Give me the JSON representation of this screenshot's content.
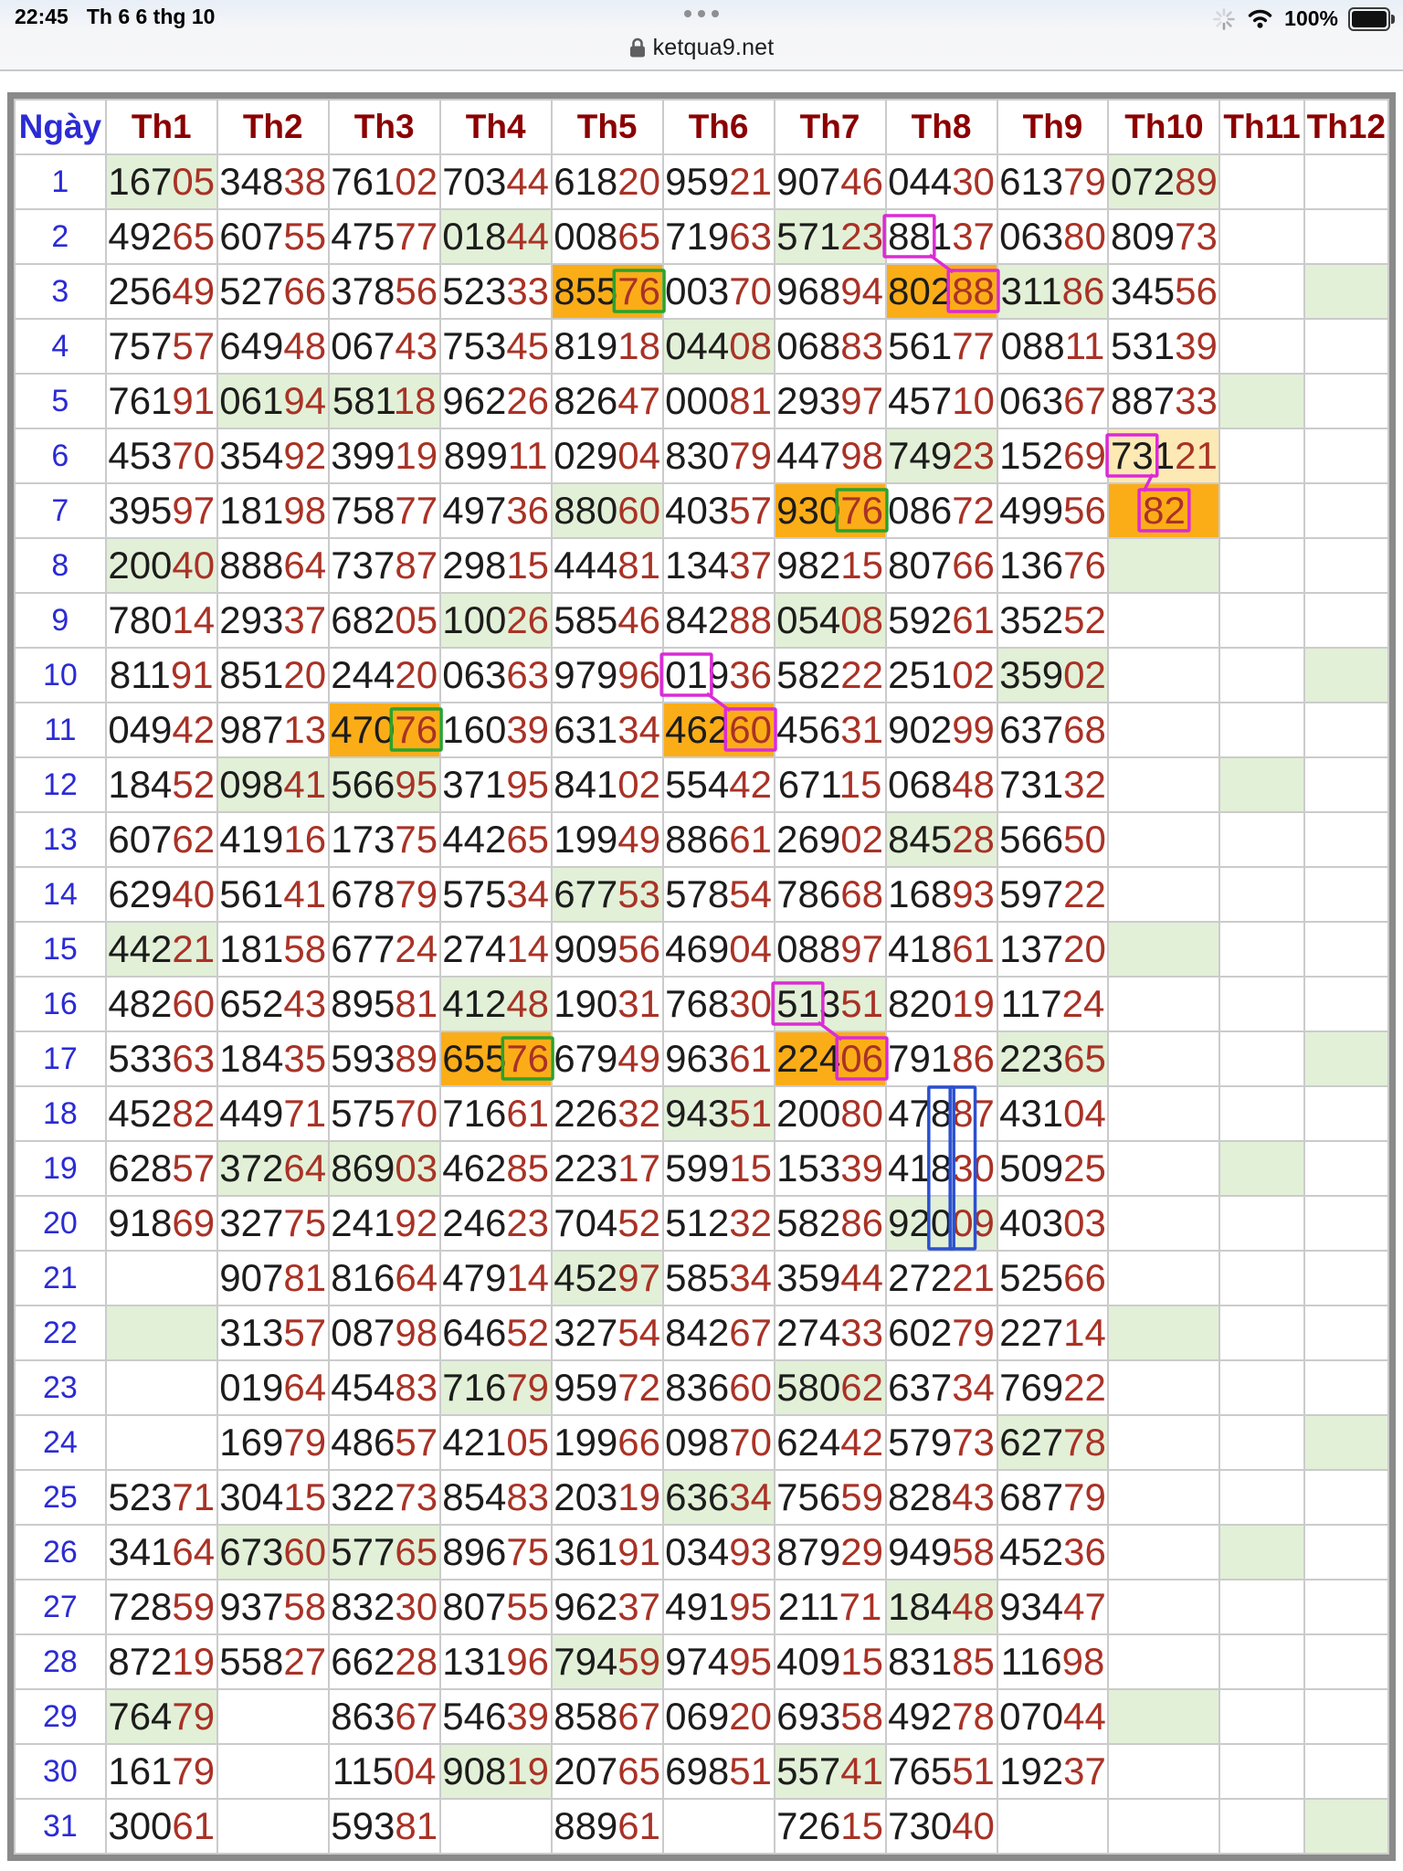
{
  "status": {
    "time": "22:45",
    "date": "Th 6 6 thg 10",
    "battery_percent": "100%",
    "right_icons": [
      "activity-spinner-icon",
      "wifi-icon",
      "battery-icon"
    ]
  },
  "browser": {
    "url": "ketqua9.net",
    "page_options_icon": "page-options-dots-icon",
    "lock_icon": "lock-icon"
  },
  "colors": {
    "green_bg": "#E2F0D7",
    "orange_bg": "#FBAD18",
    "pale_yellow_bg": "#FCE9B4",
    "magenta": "#DB2BD6",
    "green_box": "#2BA22B",
    "blue_box": "#2B50D0",
    "digit_dark": "#1C1C1C",
    "digit_red": "#A93226",
    "header_red": "#8B0000",
    "day_blue": "#2B2BD5"
  },
  "table": {
    "columns": [
      "Ngày",
      "Th1",
      "Th2",
      "Th3",
      "Th4",
      "Th5",
      "Th6",
      "Th7",
      "Th8",
      "Th9",
      "Th10",
      "Th11",
      "Th12"
    ],
    "rows": [
      {
        "d": 1,
        "c": [
          [
            "16705",
            "g"
          ],
          "34838",
          "76102",
          "70344",
          "61820",
          "95921",
          "90746",
          "04430",
          "61379",
          [
            "07289",
            "g"
          ],
          null,
          null
        ]
      },
      {
        "d": 2,
        "c": [
          "49265",
          "60755",
          "47577",
          [
            "01844",
            "g"
          ],
          "00865",
          "71963",
          [
            "57123",
            "g"
          ],
          [
            "88137",
            null,
            [
              0,
              2,
              "magenta"
            ]
          ],
          "06380",
          "80973",
          null,
          null
        ]
      },
      {
        "d": 3,
        "c": [
          "25649",
          "52766",
          "37856",
          "52333",
          [
            "85576",
            "o",
            [
              3,
              5,
              "green"
            ]
          ],
          "00370",
          "96894",
          [
            "80288",
            "o",
            [
              3,
              5,
              "magenta"
            ]
          ],
          [
            "31186",
            "g"
          ],
          "34556",
          null,
          [
            "",
            "g"
          ]
        ]
      },
      {
        "d": 4,
        "c": [
          "75757",
          "64948",
          "06743",
          "75345",
          "81918",
          [
            "04408",
            "g"
          ],
          "06883",
          "56177",
          "08811",
          "53139",
          null,
          null
        ]
      },
      {
        "d": 5,
        "c": [
          "76191",
          [
            "06194",
            "g"
          ],
          [
            "58118",
            "g"
          ],
          "96226",
          "82647",
          "00081",
          "29397",
          "45710",
          "06367",
          "88733",
          [
            "",
            "g"
          ],
          null
        ]
      },
      {
        "d": 6,
        "c": [
          "45370",
          "35492",
          "39919",
          "89911",
          "02904",
          "83079",
          "44798",
          [
            "74923",
            "g"
          ],
          "15269",
          [
            "73121",
            "y",
            [
              0,
              2,
              "magenta"
            ]
          ],
          null,
          null
        ]
      },
      {
        "d": 7,
        "c": [
          "39597",
          "18198",
          "75877",
          "49736",
          [
            "88060",
            "g"
          ],
          "40357",
          [
            "93076",
            "o",
            [
              3,
              5,
              "green"
            ]
          ],
          "08672",
          "49956",
          [
            "82",
            "o",
            [
              0,
              2,
              "magenta"
            ],
            "r"
          ],
          null,
          null
        ]
      },
      {
        "d": 8,
        "c": [
          [
            "20040",
            "g"
          ],
          "88864",
          "73787",
          "29815",
          "44481",
          "13437",
          "98215",
          "80766",
          "13676",
          [
            "",
            "g"
          ],
          null,
          null
        ]
      },
      {
        "d": 9,
        "c": [
          "78014",
          "29337",
          "68205",
          [
            "10026",
            "g"
          ],
          "58546",
          "84288",
          [
            "05408",
            "g"
          ],
          "59261",
          "35252",
          null,
          null,
          null
        ]
      },
      {
        "d": 10,
        "c": [
          "81191",
          "85120",
          "24420",
          "06363",
          "97996",
          [
            "01936",
            null,
            [
              0,
              2,
              "magenta"
            ]
          ],
          "58222",
          "25102",
          [
            "35902",
            "g"
          ],
          null,
          null,
          [
            "",
            "g"
          ]
        ]
      },
      {
        "d": 11,
        "c": [
          "04942",
          "98713",
          [
            "47076",
            "o",
            [
              3,
              5,
              "green"
            ]
          ],
          "16039",
          "63134",
          [
            "46260",
            "o",
            [
              3,
              5,
              "magenta"
            ]
          ],
          "45631",
          "90299",
          "63768",
          null,
          null,
          null
        ]
      },
      {
        "d": 12,
        "c": [
          "18452",
          [
            "09841",
            "g"
          ],
          [
            "56695",
            "g"
          ],
          "37195",
          "84102",
          "55442",
          "67115",
          "06848",
          "73132",
          null,
          [
            "",
            "g"
          ],
          null
        ]
      },
      {
        "d": 13,
        "c": [
          "60762",
          "41916",
          "17375",
          "44265",
          "19949",
          "88661",
          "26902",
          [
            "84528",
            "g"
          ],
          "56650",
          null,
          null,
          null
        ]
      },
      {
        "d": 14,
        "c": [
          "62940",
          "56141",
          "67879",
          "57534",
          [
            "67753",
            "g"
          ],
          "57854",
          "78668",
          "16893",
          "59722",
          null,
          null,
          null
        ]
      },
      {
        "d": 15,
        "c": [
          [
            "44221",
            "g"
          ],
          "18158",
          "67724",
          "27414",
          "90956",
          "46904",
          "08897",
          "41861",
          "13720",
          [
            "",
            "g"
          ],
          null,
          null
        ]
      },
      {
        "d": 16,
        "c": [
          "48260",
          "65243",
          "89581",
          [
            "41248",
            "g"
          ],
          "19031",
          "76830",
          [
            "51351",
            "g",
            [
              0,
              2,
              "magenta"
            ]
          ],
          "82019",
          "11724",
          null,
          null,
          null
        ]
      },
      {
        "d": 17,
        "c": [
          "53363",
          "18435",
          "59389",
          [
            "65576",
            "o",
            [
              3,
              5,
              "green"
            ]
          ],
          "67949",
          "96361",
          [
            "22406",
            "o",
            [
              3,
              5,
              "magenta"
            ]
          ],
          "79186",
          [
            "22365",
            "g"
          ],
          null,
          null,
          [
            "",
            "g"
          ]
        ]
      },
      {
        "d": 18,
        "c": [
          "45282",
          "44971",
          "57570",
          "71661",
          "22632",
          [
            "94351",
            "g"
          ],
          "20080",
          "47887",
          "43104",
          null,
          null,
          null
        ]
      },
      {
        "d": 19,
        "c": [
          "62857",
          [
            "37264",
            "g"
          ],
          [
            "86903",
            "g"
          ],
          "46285",
          "22317",
          "59915",
          "15339",
          "41830",
          "50925",
          null,
          [
            "",
            "g"
          ],
          null
        ]
      },
      {
        "d": 20,
        "c": [
          "91869",
          "32775",
          "24192",
          "24623",
          "70452",
          "51232",
          "58286",
          [
            "92009",
            "g"
          ],
          "40303",
          null,
          null,
          null
        ]
      },
      {
        "d": 21,
        "c": [
          null,
          "90781",
          "81664",
          "47914",
          [
            "45297",
            "g"
          ],
          "58534",
          "35944",
          "27221",
          "52566",
          null,
          null,
          null
        ]
      },
      {
        "d": 22,
        "c": [
          [
            "",
            "g"
          ],
          "31357",
          "08798",
          "64652",
          "32754",
          "84267",
          "27433",
          "60279",
          "22714",
          [
            "",
            "g"
          ],
          null,
          null
        ]
      },
      {
        "d": 23,
        "c": [
          null,
          "01964",
          "45483",
          [
            "71679",
            "g"
          ],
          "95972",
          "83660",
          [
            "58062",
            "g"
          ],
          "63734",
          "76922",
          null,
          null,
          null
        ]
      },
      {
        "d": 24,
        "c": [
          null,
          "16979",
          "48657",
          "42105",
          "19966",
          "09870",
          "62442",
          "57973",
          [
            "62778",
            "g"
          ],
          null,
          null,
          [
            "",
            "g"
          ]
        ]
      },
      {
        "d": 25,
        "c": [
          "52371",
          "30415",
          "32273",
          "85483",
          "20319",
          [
            "63634",
            "g"
          ],
          "75659",
          "82843",
          "68779",
          null,
          null,
          null
        ]
      },
      {
        "d": 26,
        "c": [
          "34164",
          [
            "67360",
            "g"
          ],
          [
            "57765",
            "g"
          ],
          "89675",
          "36191",
          "03493",
          "87929",
          "94958",
          "45236",
          null,
          [
            "",
            "g"
          ],
          null
        ]
      },
      {
        "d": 27,
        "c": [
          "72859",
          "93758",
          "83230",
          "80755",
          "96237",
          "49195",
          "21171",
          [
            "18448",
            "g"
          ],
          "93447",
          null,
          null,
          null
        ]
      },
      {
        "d": 28,
        "c": [
          "87219",
          "55827",
          "66228",
          "13196",
          [
            "79459",
            "g"
          ],
          "97495",
          "40915",
          "83185",
          "11698",
          null,
          null,
          null
        ]
      },
      {
        "d": 29,
        "c": [
          [
            "76479",
            "g"
          ],
          null,
          "86367",
          "54639",
          "85867",
          "06920",
          "69358",
          "49278",
          "07044",
          [
            "",
            "g"
          ],
          null,
          null
        ]
      },
      {
        "d": 30,
        "c": [
          "16179",
          null,
          "11504",
          [
            "90819",
            "g"
          ],
          "20765",
          "69851",
          [
            "55741",
            "g"
          ],
          "76551",
          "19237",
          null,
          null,
          null
        ]
      },
      {
        "d": 31,
        "c": [
          "30061",
          null,
          "59381",
          null,
          "88961",
          null,
          "72615",
          "73040",
          null,
          null,
          null,
          [
            "",
            "g"
          ]
        ]
      }
    ],
    "annotations": {
      "vstripes": [
        {
          "col": 8,
          "row_start": 18,
          "row_end": 20,
          "digit": 2
        },
        {
          "col": 8,
          "row_start": 18,
          "row_end": 20,
          "digit": 3
        }
      ],
      "links": [
        {
          "from_row": 2,
          "from_col": 8,
          "to_row": 3,
          "to_col": 8
        },
        {
          "from_row": 6,
          "from_col": 10,
          "to_row": 7,
          "to_col": 10
        },
        {
          "from_row": 10,
          "from_col": 6,
          "to_row": 11,
          "to_col": 6
        },
        {
          "from_row": 16,
          "from_col": 7,
          "to_row": 17,
          "to_col": 7
        }
      ]
    }
  }
}
